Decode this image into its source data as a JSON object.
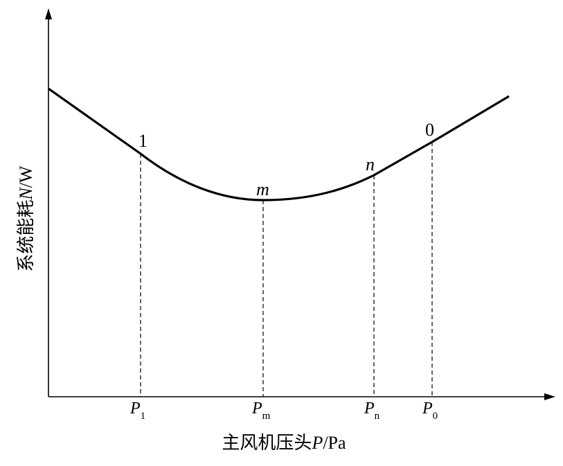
{
  "y_label": {
    "text": "系统能耗",
    "var": "N",
    "unit": "/W"
  },
  "x_label": {
    "text": "主风机压头",
    "var": "P",
    "unit": "/Pa"
  },
  "points": [
    {
      "label": "1",
      "symbol": "P",
      "subscript": "1"
    },
    {
      "label": "m",
      "symbol": "P",
      "subscript": "m"
    },
    {
      "label": "n",
      "symbol": "P",
      "subscript": "n"
    },
    {
      "label": "0",
      "symbol": "P",
      "subscript": "0"
    }
  ]
}
